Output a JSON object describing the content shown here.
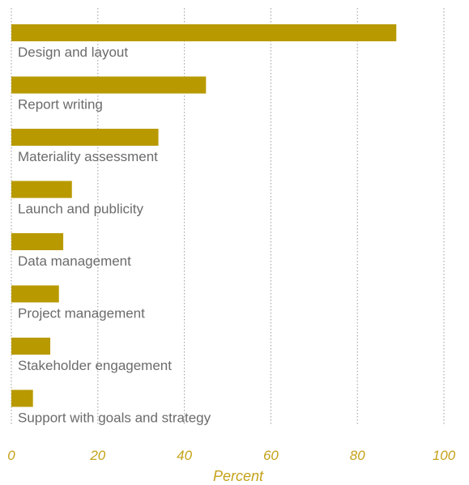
{
  "chart_data": {
    "type": "bar",
    "orientation": "horizontal",
    "categories": [
      "Design and layout",
      "Report writing",
      "Materiality assessment",
      "Launch and publicity",
      "Data management",
      "Project management",
      "Stakeholder engagement",
      "Support with goals and strategy"
    ],
    "values": [
      89,
      45,
      34,
      14,
      12,
      11,
      9,
      5
    ],
    "xlabel": "Percent",
    "ylabel": "",
    "xlim": [
      0,
      100
    ],
    "xticks": [
      "0",
      "20",
      "40",
      "60",
      "80",
      "100"
    ],
    "grid": "vertical dotted",
    "bar_color": "#b89a00",
    "label_color": "#6b6b6b",
    "axis_text_color": "#c4a21a"
  }
}
